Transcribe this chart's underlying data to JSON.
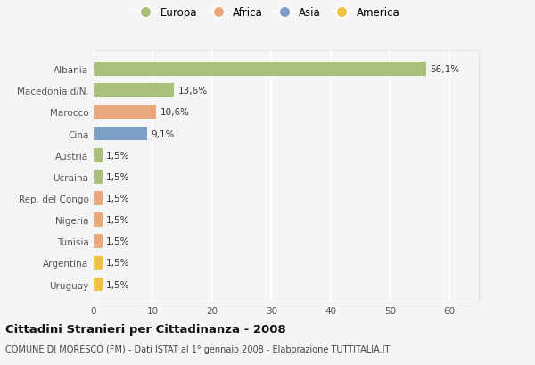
{
  "categories": [
    "Albania",
    "Macedonia d/N.",
    "Marocco",
    "Cina",
    "Austria",
    "Ucraina",
    "Rep. del Congo",
    "Nigeria",
    "Tunisia",
    "Argentina",
    "Uruguay"
  ],
  "values": [
    56.1,
    13.6,
    10.6,
    9.1,
    1.5,
    1.5,
    1.5,
    1.5,
    1.5,
    1.5,
    1.5
  ],
  "labels": [
    "56,1%",
    "13,6%",
    "10,6%",
    "9,1%",
    "1,5%",
    "1,5%",
    "1,5%",
    "1,5%",
    "1,5%",
    "1,5%",
    "1,5%"
  ],
  "bar_colors": [
    "#a8c07a",
    "#a8c07a",
    "#e8a87c",
    "#7b9fc7",
    "#a8c07a",
    "#a8c07a",
    "#e8a87c",
    "#e8a87c",
    "#e8a87c",
    "#f0c040",
    "#f0c040"
  ],
  "legend_labels": [
    "Europa",
    "Africa",
    "Asia",
    "America"
  ],
  "legend_colors": [
    "#a8c07a",
    "#e8a87c",
    "#7b9fc7",
    "#f0c040"
  ],
  "title": "Cittadini Stranieri per Cittadinanza - 2008",
  "subtitle": "COMUNE DI MORESCO (FM) - Dati ISTAT al 1° gennaio 2008 - Elaborazione TUTTITALIA.IT",
  "xlim": [
    0,
    65
  ],
  "xticks": [
    0,
    10,
    20,
    30,
    40,
    50,
    60
  ],
  "background_color": "#f5f5f5",
  "plot_bg_color": "#f5f5f5",
  "grid_color": "#ffffff",
  "bar_height": 0.65,
  "label_fontsize": 7.5,
  "tick_fontsize": 7.5,
  "legend_fontsize": 8.5
}
